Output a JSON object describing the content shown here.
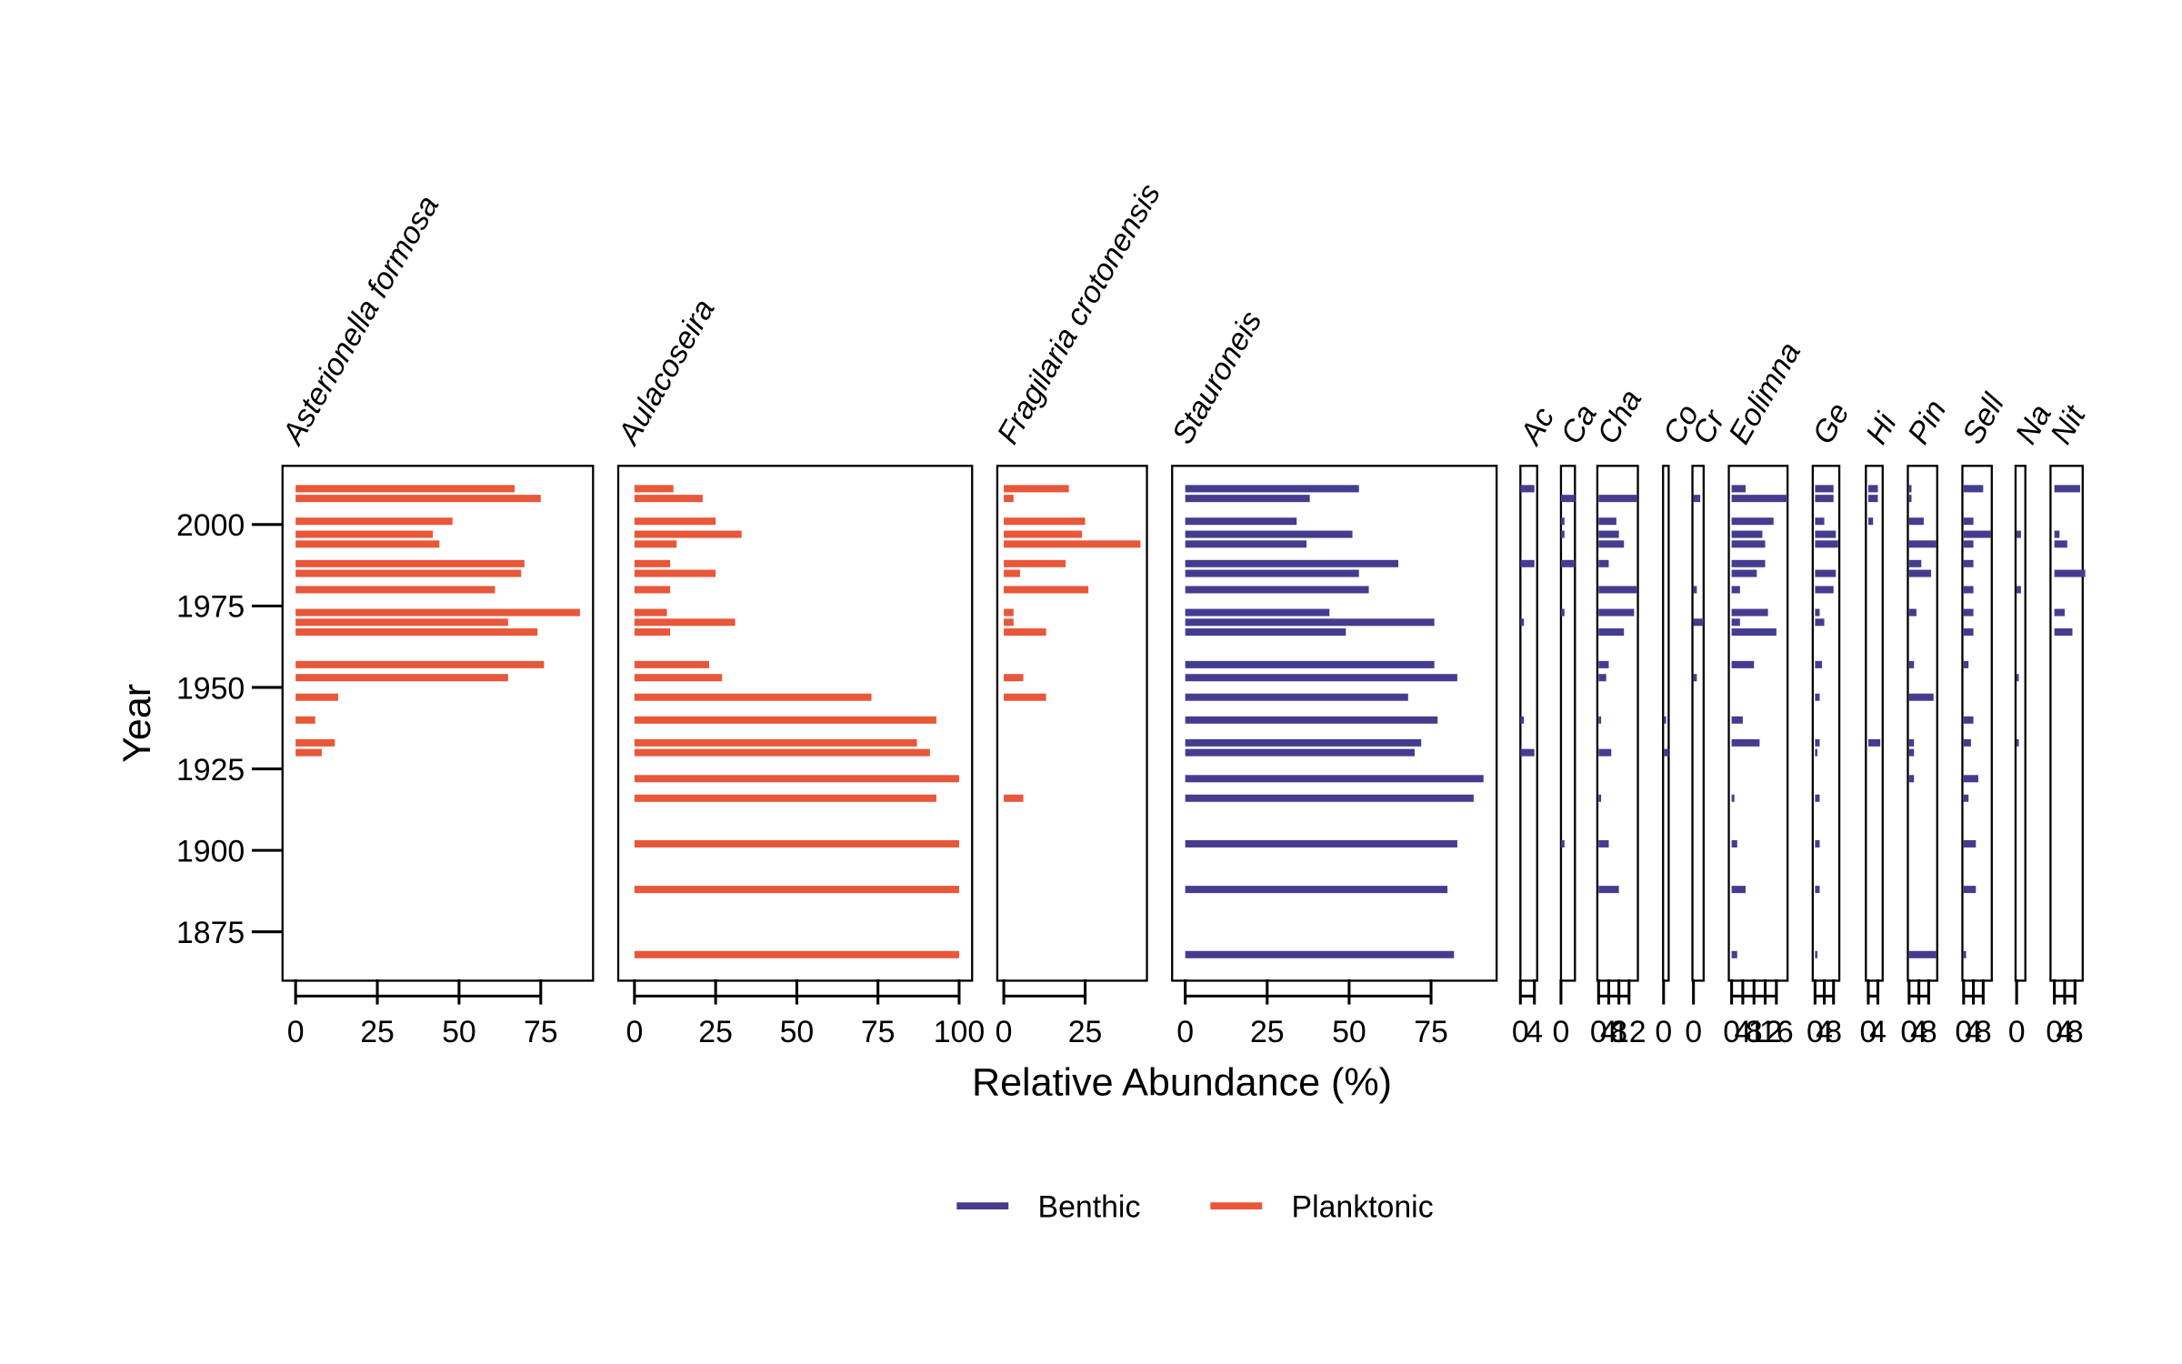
{
  "chart_data": {
    "type": "stratigraphic",
    "ylabel": "Year",
    "xlabel": "Relative Abundance (%)",
    "ylim": [
      1860,
      2018
    ],
    "yticks": [
      1875,
      1900,
      1925,
      1950,
      1975,
      2000
    ],
    "y": [
      2011,
      2008,
      2001,
      1997,
      1994,
      1988,
      1985,
      1980,
      1973,
      1970,
      1967,
      1957,
      1953,
      1947,
      1940,
      1933,
      1930,
      1922,
      1916,
      1902,
      1888,
      1868
    ],
    "series": [
      {
        "name": "Benthic",
        "color": "#463c8f"
      },
      {
        "name": "Planktonic",
        "color": "#e8573a"
      }
    ],
    "panels": [
      {
        "name": "Asterionella formosa",
        "color": "#e8573a",
        "xlim": [
          -4,
          91
        ],
        "xticks": [
          0,
          25,
          50,
          75
        ],
        "values": [
          67,
          75,
          48,
          42,
          44,
          70,
          69,
          61,
          87,
          65,
          74,
          76,
          65,
          13,
          6,
          12,
          8,
          0,
          0,
          0,
          0,
          0
        ]
      },
      {
        "name": "Aulacoseira",
        "color": "#e8573a",
        "xlim": [
          -5,
          104
        ],
        "xticks": [
          0,
          25,
          50,
          75,
          100
        ],
        "values": [
          12,
          21,
          25,
          33,
          13,
          11,
          25,
          11,
          10,
          31,
          11,
          23,
          27,
          73,
          93,
          87,
          91,
          100,
          93,
          100,
          100,
          100
        ]
      },
      {
        "name": "Fragilaria crotonensis",
        "color": "#e8573a",
        "xlim": [
          -2,
          44
        ],
        "xticks": [
          0,
          25
        ],
        "values": [
          20,
          3,
          25,
          24,
          42,
          19,
          5,
          26,
          3,
          3,
          13,
          0,
          6,
          13,
          0,
          0,
          0,
          0,
          6,
          0,
          0,
          0
        ]
      },
      {
        "name": "Stauroneis",
        "color": "#463c8f",
        "xlim": [
          -4,
          95
        ],
        "xticks": [
          0,
          25,
          50,
          75
        ],
        "values": [
          53,
          38,
          34,
          51,
          37,
          65,
          53,
          56,
          44,
          76,
          49,
          76,
          83,
          68,
          77,
          72,
          70,
          91,
          88,
          83,
          80,
          82
        ]
      },
      {
        "name": "Ac",
        "color": "#463c8f",
        "xlim": [
          0,
          4.8
        ],
        "xticks": [
          0,
          4
        ],
        "values": [
          4,
          0,
          0,
          0,
          0,
          4,
          0,
          0,
          0,
          1,
          0,
          0,
          0,
          0,
          1,
          0,
          4,
          0,
          0,
          0,
          0,
          0
        ]
      },
      {
        "name": "Ca",
        "color": "#463c8f",
        "xlim": [
          0,
          4
        ],
        "xticks": [
          0
        ],
        "values": [
          0,
          4,
          1,
          1,
          0,
          4,
          0,
          0,
          1,
          0,
          0,
          0,
          0,
          0,
          0,
          0,
          0,
          0,
          0,
          1,
          0,
          0
        ]
      },
      {
        "name": "Cha",
        "color": "#463c8f",
        "xlim": [
          -0.5,
          15.5
        ],
        "xticks": [
          0,
          4,
          8,
          12
        ],
        "values": [
          0,
          15,
          7,
          8,
          10,
          4,
          0,
          15,
          14,
          0,
          10,
          4,
          3,
          0,
          1,
          0,
          5,
          0,
          1,
          4,
          8,
          0
        ]
      },
      {
        "name": "Co",
        "color": "#463c8f",
        "xlim": [
          -0.2,
          2
        ],
        "xticks": [
          0
        ],
        "values": [
          0,
          0,
          0,
          0,
          0,
          0,
          0,
          0,
          0,
          0,
          0,
          0,
          0,
          0,
          1,
          0,
          2,
          0,
          0,
          0,
          0,
          0
        ]
      },
      {
        "name": "Cr",
        "color": "#463c8f",
        "xlim": [
          -0.3,
          3
        ],
        "xticks": [
          0
        ],
        "values": [
          0,
          2,
          0,
          0,
          0,
          0,
          0,
          1,
          0,
          3,
          0,
          0,
          1,
          0,
          0,
          0,
          0,
          0,
          0,
          0,
          0,
          0
        ]
      },
      {
        "name": "Eolimna",
        "color": "#463c8f",
        "xlim": [
          -1,
          20
        ],
        "xticks": [
          0,
          4,
          8,
          12,
          16
        ],
        "values": [
          5,
          20,
          15,
          11,
          12,
          12,
          9,
          3,
          13,
          3,
          16,
          8,
          0,
          0,
          4,
          10,
          0,
          0,
          1,
          2,
          5,
          2
        ]
      },
      {
        "name": "Ge",
        "color": "#463c8f",
        "xlim": [
          -1,
          10.5
        ],
        "xticks": [
          0,
          4,
          8
        ],
        "values": [
          8,
          8,
          4,
          9,
          10,
          0,
          9,
          8,
          2,
          4,
          0,
          3,
          0,
          2,
          0,
          2,
          1,
          0,
          2,
          2,
          2,
          1
        ]
      },
      {
        "name": "Hi",
        "color": "#463c8f",
        "xlim": [
          -1,
          6
        ],
        "xticks": [
          0,
          4
        ],
        "values": [
          4,
          4,
          2,
          0,
          0,
          0,
          0,
          0,
          0,
          0,
          0,
          0,
          0,
          0,
          0,
          5,
          0,
          0,
          0,
          0,
          0,
          0
        ]
      },
      {
        "name": "Pin",
        "color": "#463c8f",
        "xlim": [
          -0.5,
          11.5
        ],
        "xticks": [
          0,
          4,
          8
        ],
        "values": [
          1,
          1,
          6,
          0,
          11,
          5,
          9,
          0,
          3,
          0,
          0,
          2,
          0,
          10,
          0,
          2,
          2,
          2,
          0,
          0,
          0,
          11
        ]
      },
      {
        "name": "Sell",
        "color": "#463c8f",
        "xlim": [
          -0.5,
          11.5
        ],
        "xticks": [
          0,
          4,
          8
        ],
        "values": [
          8,
          0,
          4,
          11,
          4,
          4,
          0,
          4,
          4,
          0,
          4,
          2,
          0,
          0,
          4,
          3,
          0,
          6,
          2,
          5,
          5,
          1
        ]
      },
      {
        "name": "Na",
        "color": "#463c8f",
        "xlim": [
          -0.5,
          4
        ],
        "xticks": [
          0
        ],
        "values": [
          0,
          0,
          0,
          2,
          0,
          0,
          0,
          2,
          0,
          0,
          0,
          0,
          1,
          0,
          0,
          1,
          0,
          0,
          0,
          0,
          0,
          0
        ]
      },
      {
        "name": "Nit",
        "color": "#463c8f",
        "xlim": [
          -1.5,
          11
        ],
        "xticks": [
          0,
          4,
          8
        ],
        "values": [
          10,
          0,
          0,
          2,
          5,
          0,
          12,
          0,
          4,
          0,
          7,
          0,
          0,
          0,
          0,
          0,
          0,
          0,
          0,
          0,
          0,
          0
        ]
      }
    ]
  }
}
